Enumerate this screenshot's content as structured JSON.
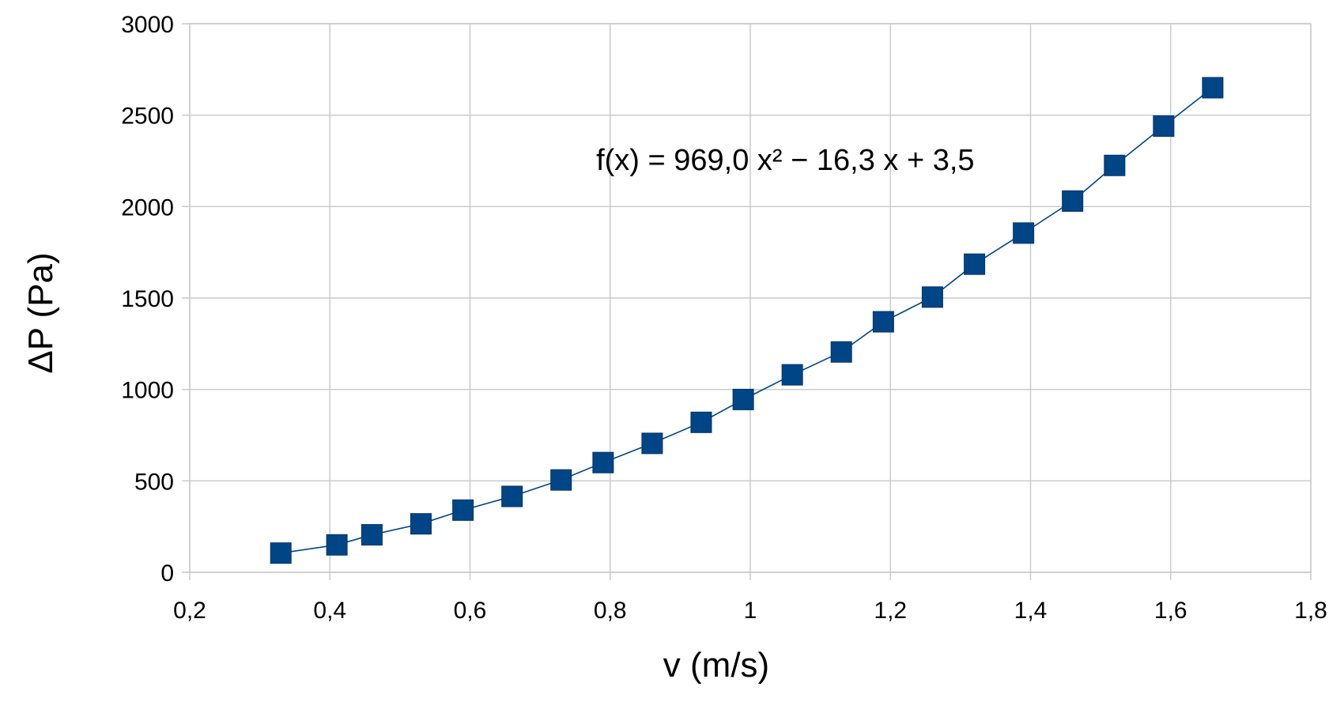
{
  "chart_data": {
    "type": "scatter",
    "title": "",
    "xlabel": "v (m/s)",
    "ylabel": "ΔP (Pa)",
    "xlim": [
      0.2,
      1.8
    ],
    "ylim": [
      0,
      3000
    ],
    "x_ticks": [
      0.2,
      0.4,
      0.6,
      0.8,
      1.0,
      1.2,
      1.4,
      1.6,
      1.8
    ],
    "x_tick_labels": [
      "0,2",
      "0,4",
      "0,6",
      "0,8",
      "1",
      "1,2",
      "1,4",
      "1,6",
      "1,8"
    ],
    "y_ticks": [
      0,
      500,
      1000,
      1500,
      2000,
      2500,
      3000
    ],
    "y_tick_labels": [
      "0",
      "500",
      "1000",
      "1500",
      "2000",
      "2500",
      "3000"
    ],
    "grid": true,
    "legend": "none",
    "series": [
      {
        "name": "ΔP",
        "marker": "square",
        "line": true,
        "color": "#004586",
        "x": [
          0.33,
          0.41,
          0.46,
          0.53,
          0.59,
          0.66,
          0.73,
          0.79,
          0.86,
          0.93,
          0.99,
          1.06,
          1.13,
          1.19,
          1.26,
          1.32,
          1.39,
          1.46,
          1.52,
          1.59,
          1.66
        ],
        "y": [
          105,
          150,
          205,
          265,
          340,
          415,
          505,
          600,
          705,
          820,
          945,
          1080,
          1205,
          1370,
          1505,
          1685,
          1855,
          2030,
          2225,
          2440,
          2650
        ]
      }
    ],
    "annotations": [
      {
        "text": "f(x) = 969,0 x² − 16,3 x + 3,5",
        "x": 1.05,
        "y": 2200
      }
    ]
  }
}
